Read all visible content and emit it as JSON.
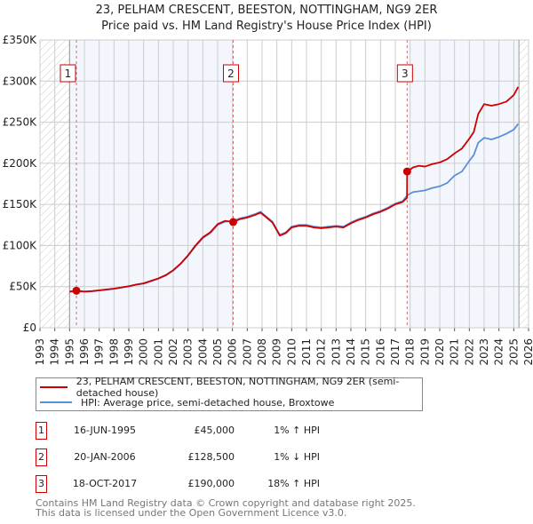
{
  "chart_data": {
    "type": "line",
    "title": "23, PELHAM CRESCENT, BEESTON, NOTTINGHAM, NG9 2ER",
    "subtitle": "Price paid vs. HM Land Registry's House Price Index (HPI)",
    "xlim": [
      1993,
      2026
    ],
    "ylim": [
      0,
      350000
    ],
    "x_ticks": [
      "1993",
      "1994",
      "1995",
      "1996",
      "1997",
      "1998",
      "1999",
      "2000",
      "2001",
      "2002",
      "2003",
      "2004",
      "2005",
      "2006",
      "2007",
      "2008",
      "2009",
      "2010",
      "2011",
      "2012",
      "2013",
      "2014",
      "2015",
      "2016",
      "2017",
      "2018",
      "2019",
      "2020",
      "2021",
      "2022",
      "2023",
      "2024",
      "2025",
      "2026"
    ],
    "y_ticks": [
      {
        "v": 0,
        "label": "£0"
      },
      {
        "v": 50000,
        "label": "£50K"
      },
      {
        "v": 100000,
        "label": "£100K"
      },
      {
        "v": 150000,
        "label": "£150K"
      },
      {
        "v": 200000,
        "label": "£200K"
      },
      {
        "v": 250000,
        "label": "£250K"
      },
      {
        "v": 300000,
        "label": "£300K"
      },
      {
        "v": 350000,
        "label": "£350K"
      }
    ],
    "grid": true,
    "series": [
      {
        "name": "23, PELHAM CRESCENT, BEESTON, NOTTINGHAM, NG9 2ER (semi-detached house)",
        "color": "#cc0000",
        "x": [
          1995,
          1995.46,
          1996,
          1996.5,
          1997,
          1997.5,
          1998,
          1998.5,
          1999,
          1999.5,
          2000,
          2000.5,
          2001,
          2001.5,
          2002,
          2002.5,
          2003,
          2003.5,
          2004,
          2004.5,
          2005,
          2005.5,
          2006.05,
          2006.5,
          2007,
          2007.5,
          2007.9,
          2008.3,
          2008.7,
          2009.2,
          2009.6,
          2010,
          2010.5,
          2011,
          2011.5,
          2012,
          2012.5,
          2013,
          2013.5,
          2014,
          2014.5,
          2015,
          2015.5,
          2016,
          2016.5,
          2017,
          2017.5,
          2017.79,
          2017.8,
          2018.2,
          2018.6,
          2019,
          2019.5,
          2020,
          2020.5,
          2021,
          2021.5,
          2022,
          2022.3,
          2022.6,
          2023,
          2023.5,
          2024,
          2024.5,
          2025,
          2025.3
        ],
        "y": [
          44000,
          45000,
          44000,
          44500,
          45500,
          46500,
          47500,
          49000,
          50500,
          52500,
          54000,
          57000,
          60000,
          64000,
          70000,
          78000,
          88000,
          100000,
          110000,
          116000,
          126000,
          130000,
          128500,
          132000,
          134000,
          137000,
          140000,
          134000,
          128000,
          112000,
          115000,
          122000,
          124000,
          124000,
          122000,
          121000,
          122000,
          123000,
          122000,
          127000,
          131000,
          134000,
          138000,
          141000,
          145000,
          150000,
          153000,
          158000,
          190000,
          195000,
          197000,
          196000,
          199000,
          201000,
          205000,
          212000,
          218000,
          230000,
          238000,
          260000,
          272000,
          270000,
          272000,
          275000,
          283000,
          293000
        ]
      },
      {
        "name": "HPI: Average price, semi-detached house, Broxtowe",
        "color": "#5b8fd6",
        "x": [
          1995,
          1995.46,
          1996,
          1996.5,
          1997,
          1997.5,
          1998,
          1998.5,
          1999,
          1999.5,
          2000,
          2000.5,
          2001,
          2001.5,
          2002,
          2002.5,
          2003,
          2003.5,
          2004,
          2004.5,
          2005,
          2005.5,
          2006.05,
          2006.5,
          2007,
          2007.5,
          2007.9,
          2008.3,
          2008.7,
          2009.2,
          2009.6,
          2010,
          2010.5,
          2011,
          2011.5,
          2012,
          2012.5,
          2013,
          2013.5,
          2014,
          2014.5,
          2015,
          2015.5,
          2016,
          2016.5,
          2017,
          2017.5,
          2017.8,
          2018.2,
          2018.6,
          2019,
          2019.5,
          2020,
          2020.5,
          2021,
          2021.5,
          2022,
          2022.3,
          2022.6,
          2023,
          2023.5,
          2024,
          2024.5,
          2025,
          2025.3
        ],
        "y": [
          43500,
          44500,
          43800,
          44300,
          45200,
          46300,
          47300,
          48800,
          50200,
          52300,
          53600,
          56600,
          59600,
          63500,
          69500,
          77500,
          87500,
          99000,
          109000,
          115000,
          125000,
          129000,
          129800,
          133000,
          135000,
          138000,
          141000,
          135000,
          129000,
          113000,
          116000,
          123000,
          125000,
          125000,
          123000,
          122000,
          123000,
          124000,
          123000,
          128000,
          132000,
          135000,
          139000,
          142000,
          146000,
          151000,
          154000,
          161000,
          165000,
          166000,
          167000,
          170000,
          172000,
          176000,
          185000,
          190000,
          203000,
          210000,
          225000,
          231000,
          229000,
          232000,
          236000,
          241000,
          248000
        ]
      }
    ],
    "sales": [
      {
        "n": "1",
        "x": 1995.46,
        "y": 45000,
        "date": "16-JUN-1995",
        "price": "£45,000",
        "hpi": "1% ↑ HPI"
      },
      {
        "n": "2",
        "x": 2006.05,
        "y": 128500,
        "date": "20-JAN-2006",
        "price": "£128,500",
        "hpi": "1% ↓ HPI"
      },
      {
        "n": "3",
        "x": 2017.8,
        "y": 190000,
        "date": "18-OCT-2017",
        "price": "£190,000",
        "hpi": "18% ↑ HPI"
      }
    ],
    "hatch_before": 1995,
    "hatch_after": 2025.35
  },
  "footer": {
    "line1": "Contains HM Land Registry data © Crown copyright and database right 2025.",
    "line2": "This data is licensed under the Open Government Licence v3.0."
  }
}
